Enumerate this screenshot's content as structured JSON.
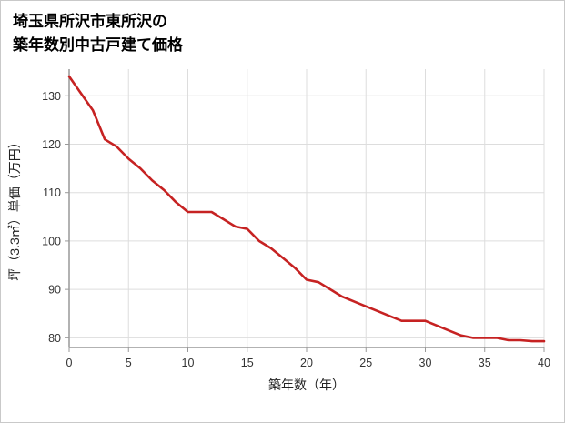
{
  "page": {
    "title_line1": "埼玉県所沢市東所沢の",
    "title_line2": "築年数別中古戸建て価格"
  },
  "chart_data": {
    "type": "line",
    "title": "埼玉県所沢市東所沢の築年数別中古戸建て価格",
    "xlabel": "築年数（年）",
    "ylabel": "坪（3.3㎡）単価（万円）",
    "x": [
      0,
      1,
      2,
      3,
      4,
      5,
      6,
      7,
      8,
      9,
      10,
      11,
      12,
      13,
      14,
      15,
      16,
      17,
      18,
      19,
      20,
      21,
      22,
      23,
      24,
      25,
      26,
      27,
      28,
      29,
      30,
      31,
      32,
      33,
      34,
      35,
      36,
      37,
      38,
      39,
      40
    ],
    "values": [
      134,
      130.5,
      127,
      121,
      119.5,
      117,
      115,
      112.5,
      110.5,
      108,
      106,
      106,
      106,
      104.5,
      103,
      102.5,
      100,
      98.5,
      96.5,
      94.5,
      92,
      91.5,
      90,
      88.5,
      87.5,
      86.5,
      85.5,
      84.5,
      83.5,
      83.5,
      83.5,
      82.5,
      81.5,
      80.5,
      80,
      80,
      80,
      79.5,
      79.5,
      79.3,
      79.3
    ],
    "xticks": [
      0,
      5,
      10,
      15,
      20,
      25,
      30,
      35,
      40
    ],
    "yticks": [
      80,
      90,
      100,
      110,
      120,
      130
    ],
    "xlim": [
      0,
      40
    ],
    "ylim": [
      78,
      135.5
    ],
    "grid": true,
    "legend": "none",
    "line_color": "#c62222",
    "grid_color": "#dddddd",
    "axis_color": "#999999"
  }
}
